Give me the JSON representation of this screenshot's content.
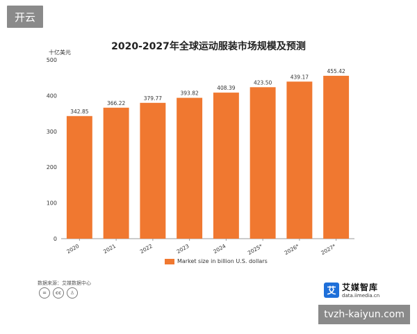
{
  "badge": "开云",
  "watermark": "tvzh-kaiyun.com",
  "source_label": "数据来源：艾媒数据中心",
  "brand": {
    "name": "艾媒智库",
    "url": "data.iimedia.cn",
    "logo_char": "艾"
  },
  "colors": {
    "bar": "#f07830",
    "axis": "#999999",
    "text": "#333333"
  },
  "chart_data": {
    "type": "bar",
    "title": "2020-2027年全球运动服装市场规模及预测",
    "ylabel": "十亿美元",
    "xlabel": "",
    "categories": [
      "2020",
      "2021",
      "2022",
      "2023",
      "2024",
      "2025*",
      "2026*",
      "2027*"
    ],
    "values": [
      342.85,
      366.22,
      379.77,
      393.82,
      408.39,
      423.5,
      439.17,
      455.42
    ],
    "value_labels": [
      "342.85",
      "366.22",
      "379.77",
      "393.82",
      "408.39",
      "423.50",
      "439.17",
      "455.42"
    ],
    "ylim": [
      0,
      500
    ],
    "yticks": [
      0,
      100,
      200,
      300,
      400,
      500
    ],
    "legend": "Market size in billion U.S. dollars",
    "legend_position": "bottom",
    "grid": false
  }
}
